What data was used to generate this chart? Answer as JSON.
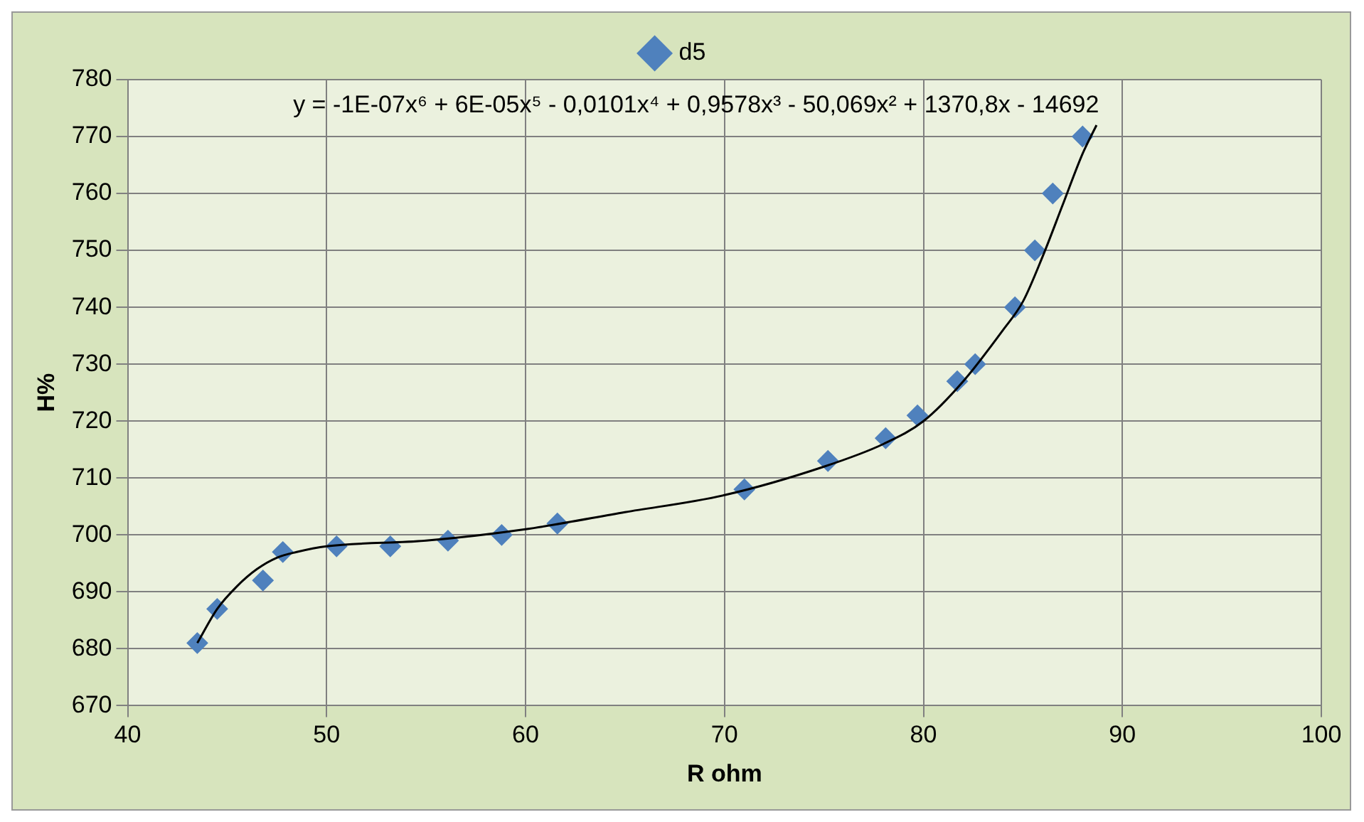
{
  "chart_data": {
    "type": "scatter",
    "xlabel": "R ohm",
    "ylabel": "H%",
    "legend": "top",
    "grid": true,
    "marker": "diamond",
    "xlim": [
      40,
      100
    ],
    "xticks": [
      40,
      50,
      60,
      70,
      80,
      90,
      100
    ],
    "ylim": [
      670,
      780
    ],
    "yticks": [
      670,
      680,
      690,
      700,
      710,
      720,
      730,
      740,
      750,
      760,
      770,
      780
    ],
    "annotations": [
      "y = -1E-07x⁶ + 6E-05x⁵ - 0,0101x⁴ + 0,9578x³ - 50,069x² + 1370,8x - 14692"
    ],
    "series": [
      {
        "name": "d5",
        "color": "#4f81bd",
        "x": [
          43.5,
          44.5,
          46.8,
          47.8,
          50.5,
          53.2,
          56.1,
          58.8,
          61.6,
          71.0,
          75.2,
          78.1,
          79.7,
          81.7,
          82.6,
          84.6,
          85.6,
          86.5,
          88.0
        ],
        "values": [
          681,
          687,
          692,
          697,
          698,
          698,
          699,
          700,
          702,
          708,
          713,
          717,
          721,
          727,
          730,
          740,
          750,
          760,
          770
        ]
      },
      {
        "type": "line",
        "color": "#000000",
        "marker": "none",
        "x": [
          43.5,
          44.5,
          45.5,
          46.5,
          47.5,
          48.5,
          50,
          55,
          60,
          65,
          70,
          75,
          78,
          80,
          82,
          84,
          85,
          86,
          87,
          88,
          88.7
        ],
        "values": [
          681,
          687,
          691,
          694,
          696,
          697,
          698,
          699,
          701,
          704,
          707,
          712,
          716,
          720,
          727,
          736,
          741,
          749,
          758,
          767,
          772
        ]
      }
    ]
  }
}
